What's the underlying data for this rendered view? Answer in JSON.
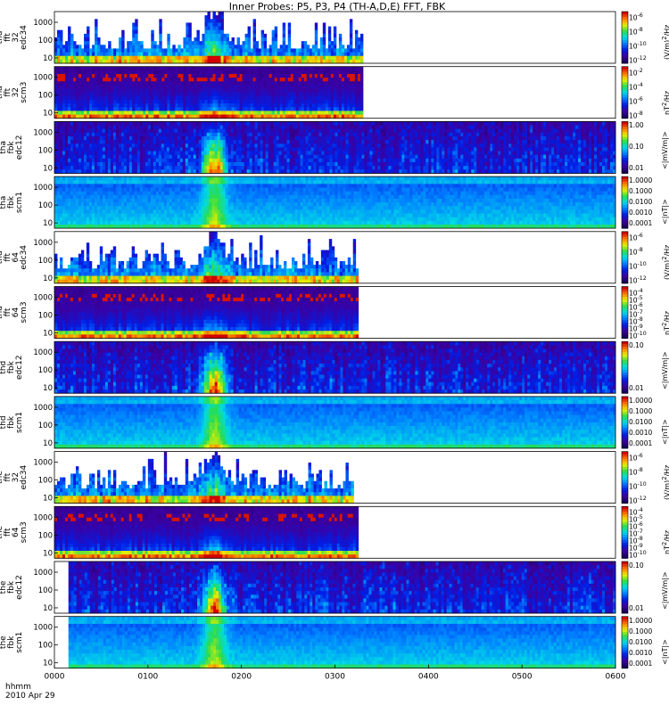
{
  "chart_data": {
    "type": "heatmap",
    "title": "Inner Probes: P5, P3, P4 (TH-A,D,E) FFT, FBK",
    "x_label_line1": "hhmm",
    "x_label_line2": "2010 Apr 29",
    "x_ticks": [
      "0000",
      "0100",
      "0200",
      "0300",
      "0400",
      "0500",
      "0600"
    ],
    "x_range_hours": [
      0,
      6
    ],
    "y_scale": "log",
    "panels": [
      {
        "probe": "tha",
        "inst": "fft",
        "chan": "edc34",
        "rate": "32",
        "line1": "tha",
        "line2": "fft",
        "line3": "32",
        "line4": "edc34",
        "y_ticks": [
          "1000",
          "100",
          "10"
        ],
        "y_range": [
          5,
          4000
        ],
        "cb_ticks": [
          "10<sup>-6</sup>",
          "10<sup>-8</sup>",
          "10<sup>-10</sup>",
          "10<sup>-12</sup>"
        ],
        "cb_label": "(V/m)<sup>2</sup>/Hz",
        "style": "spiky",
        "x_end_hours": 3.3
      },
      {
        "probe": "tha",
        "inst": "fft",
        "chan": "scm3",
        "rate": "32",
        "line1": "tha",
        "line2": "fft",
        "line3": "32",
        "line4": "scm3",
        "y_ticks": [
          "1000",
          "100",
          "10"
        ],
        "y_range": [
          5,
          4000
        ],
        "cb_ticks": [
          "10<sup>-2</sup>",
          "10<sup>-4</sup>",
          "10<sup>-6</sup>",
          "10<sup>-8</sup>"
        ],
        "cb_label": "nT<sup>2</sup>/Hz",
        "style": "dense",
        "x_end_hours": 3.3
      },
      {
        "probe": "tha",
        "inst": "fbk",
        "chan": "edc12",
        "line1": "tha",
        "line2": "fbk",
        "line3": "edc12",
        "y_ticks": [
          "1000",
          "100",
          "10"
        ],
        "y_range": [
          5,
          4000
        ],
        "cb_ticks": [
          "1.00",
          "0.10",
          "0.01"
        ],
        "cb_label": "&lt;|mV/m|&gt;",
        "style": "fbk_dark",
        "x_end_hours": 6
      },
      {
        "probe": "tha",
        "inst": "fbk",
        "chan": "scm1",
        "line1": "tha",
        "line2": "fbk",
        "line3": "scm1",
        "y_ticks": [
          "1000",
          "100",
          "10"
        ],
        "y_range": [
          5,
          4000
        ],
        "cb_ticks": [
          "1.0000",
          "0.1000",
          "0.0100",
          "0.0010",
          "0.0001"
        ],
        "cb_label": "&lt;|nT|&gt;",
        "style": "fbk_blue",
        "x_end_hours": 6
      },
      {
        "probe": "thd",
        "inst": "fft",
        "chan": "edc34",
        "rate": "64",
        "line1": "thd",
        "line2": "fft",
        "line3": "64",
        "line4": "edc34",
        "y_ticks": [
          "1000",
          "100",
          "10"
        ],
        "y_range": [
          5,
          4000
        ],
        "cb_ticks": [
          "10<sup>-6</sup>",
          "10<sup>-8</sup>",
          "10<sup>-10</sup>",
          "10<sup>-12</sup>"
        ],
        "cb_label": "(V/m)<sup>2</sup>/Hz",
        "style": "spiky",
        "x_end_hours": 3.25
      },
      {
        "probe": "thd",
        "inst": "fft",
        "chan": "scm3",
        "rate": "64",
        "line1": "thd",
        "line2": "fft",
        "line3": "64",
        "line4": "scm3",
        "y_ticks": [
          "1000",
          "100",
          "10"
        ],
        "y_range": [
          5,
          4000
        ],
        "cb_ticks": [
          "10<sup>-4</sup>",
          "10<sup>-5</sup>",
          "10<sup>-6</sup>",
          "10<sup>-7</sup>",
          "10<sup>-8</sup>",
          "10<sup>-9</sup>",
          "10<sup>-10</sup>"
        ],
        "cb_label": "nT<sup>2</sup>/Hz",
        "style": "dense",
        "x_end_hours": 3.25
      },
      {
        "probe": "thd",
        "inst": "fbk",
        "chan": "edc12",
        "line1": "thd",
        "line2": "fbk",
        "line3": "edc12",
        "y_ticks": [
          "1000",
          "100",
          "10"
        ],
        "y_range": [
          5,
          4000
        ],
        "cb_ticks": [
          "0.10",
          "0.01"
        ],
        "cb_label": "&lt;|mV/m|&gt;",
        "style": "fbk_dark",
        "x_end_hours": 6
      },
      {
        "probe": "thd",
        "inst": "fbk",
        "chan": "scm1",
        "line1": "thd",
        "line2": "fbk",
        "line3": "scm1",
        "y_ticks": [
          "1000",
          "100",
          "10"
        ],
        "y_range": [
          5,
          4000
        ],
        "cb_ticks": [
          "1.0000",
          "0.1000",
          "0.0100",
          "0.0010",
          "0.0001"
        ],
        "cb_label": "&lt;|nT|&gt;",
        "style": "fbk_blue",
        "x_end_hours": 6
      },
      {
        "probe": "the",
        "inst": "fft",
        "chan": "edc34",
        "rate": "32",
        "line1": "the",
        "line2": "fft",
        "line3": "32",
        "line4": "edc34",
        "y_ticks": [
          "1000",
          "100",
          "10"
        ],
        "y_range": [
          5,
          4000
        ],
        "cb_ticks": [
          "10<sup>-6</sup>",
          "10<sup>-8</sup>",
          "10<sup>-10</sup>",
          "10<sup>-12</sup>"
        ],
        "cb_label": "(V/m)<sup>2</sup>/Hz",
        "style": "spiky",
        "x_end_hours": 3.2
      },
      {
        "probe": "the",
        "inst": "fft",
        "chan": "scm3",
        "rate": "64",
        "line1": "the",
        "line2": "fft",
        "line3": "64",
        "line4": "scm3",
        "y_ticks": [
          "1000",
          "100",
          "10"
        ],
        "y_range": [
          5,
          4000
        ],
        "cb_ticks": [
          "10<sup>-4</sup>",
          "10<sup>-5</sup>",
          "10<sup>-6</sup>",
          "10<sup>-7</sup>",
          "10<sup>-8</sup>",
          "10<sup>-9</sup>",
          "10<sup>-10</sup>"
        ],
        "cb_label": "nT<sup>2</sup>/Hz",
        "style": "dense",
        "x_end_hours": 3.25
      },
      {
        "probe": "the",
        "inst": "fbk",
        "chan": "edc12",
        "line1": "the",
        "line2": "fbk",
        "line3": "edc12",
        "y_ticks": [
          "1000",
          "100",
          "10"
        ],
        "y_range": [
          5,
          4000
        ],
        "cb_ticks": [
          "0.10",
          "0.01"
        ],
        "cb_label": "&lt;|mV/m|&gt;",
        "style": "fbk_dark",
        "x_start_hours": 0.15,
        "x_end_hours": 6
      },
      {
        "probe": "the",
        "inst": "fbk",
        "chan": "scm1",
        "line1": "the",
        "line2": "fbk",
        "line3": "scm1",
        "y_ticks": [
          "1000",
          "100",
          "10"
        ],
        "y_range": [
          5,
          4000
        ],
        "cb_ticks": [
          "1.0000",
          "0.1000",
          "0.0100",
          "0.0010",
          "0.0001"
        ],
        "cb_label": "&lt;|nT|&gt;",
        "style": "fbk_blue",
        "x_start_hours": 0.15,
        "x_end_hours": 6
      }
    ]
  }
}
